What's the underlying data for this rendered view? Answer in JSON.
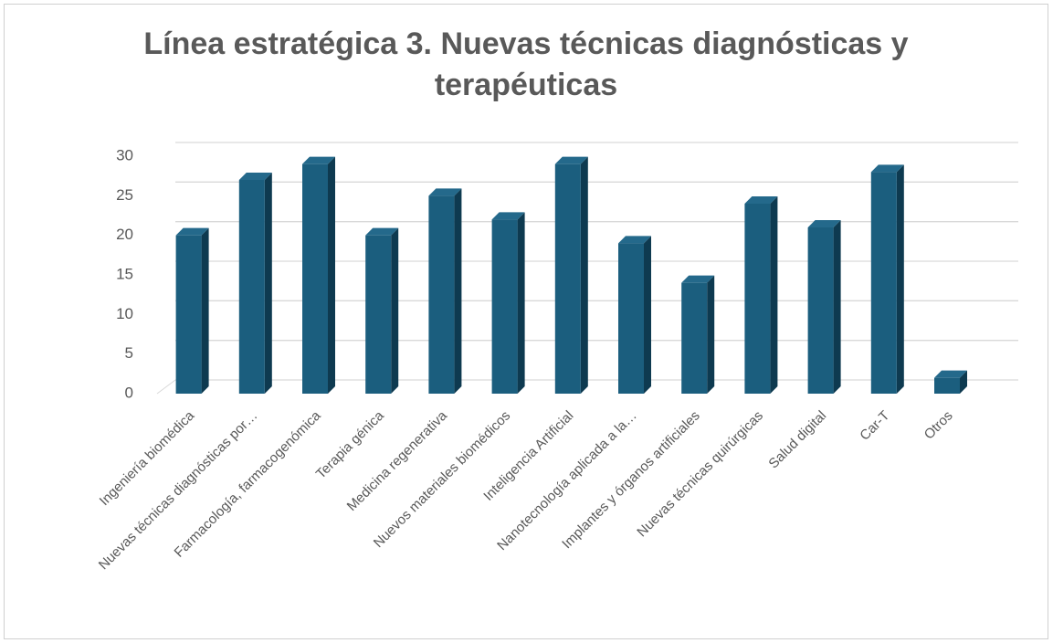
{
  "chart_data": {
    "type": "bar3d",
    "title": "Línea estratégica 3. Nuevas técnicas diagnósticas y terapéuticas",
    "categories": [
      "Ingeniería biomédica",
      "Nuevas técnicas diagnósticas por…",
      "Farmacología, farmacogenómica",
      "Terapia génica",
      "Medicina regenerativa",
      "Nuevos materiales biomédicos",
      "Inteligencia Artificial",
      "Nanotecnología aplicada a la…",
      "Implantes y órganos artificiales",
      "Nuevas técnicas quirúrgicas",
      "Salud digital",
      "Car-T",
      "Otros"
    ],
    "values": [
      20,
      27,
      29,
      20,
      25,
      22,
      29,
      19,
      14,
      24,
      21,
      28,
      2
    ],
    "color": "#1b5e7e",
    "ylim": [
      0,
      30
    ],
    "yticks": [
      0,
      5,
      10,
      15,
      20,
      25,
      30
    ],
    "grid": true
  }
}
